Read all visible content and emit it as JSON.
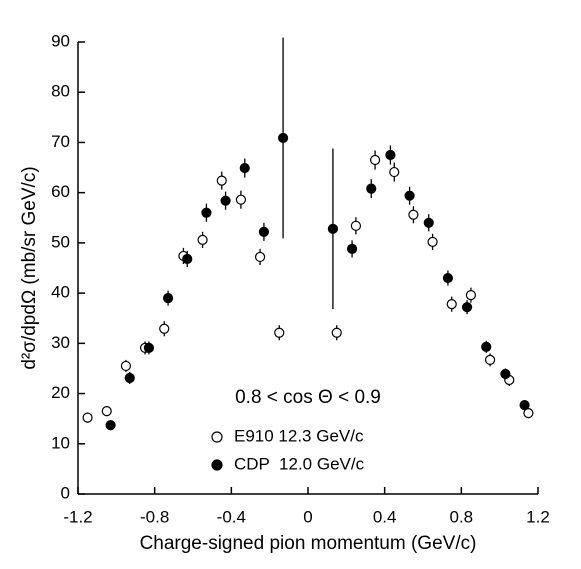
{
  "chart_data": {
    "type": "scatter",
    "annotation": "0.8 < cos Θ < 0.9",
    "xlabel": "Charge-signed pion momentum (GeV/c)",
    "ylabel": "d²σ/dpdΩ (mb/sr GeV/c)",
    "xlim": [
      -1.2,
      1.2
    ],
    "ylim": [
      0,
      90
    ],
    "xticks": [
      -1.2,
      -0.8,
      -0.4,
      0,
      0.4,
      0.8,
      1.2
    ],
    "yticks": [
      0,
      10,
      20,
      30,
      40,
      50,
      60,
      70,
      80,
      90
    ],
    "series": [
      {
        "name": "E910 12.3 GeV/c",
        "marker": "open",
        "color": "#000000",
        "x": [
          -1.15,
          -1.05,
          -0.95,
          -0.85,
          -0.75,
          -0.65,
          -0.55,
          -0.45,
          -0.35,
          -0.25,
          -0.15,
          0.15,
          0.25,
          0.35,
          0.45,
          0.55,
          0.65,
          0.75,
          0.85,
          0.95,
          1.05,
          1.15
        ],
        "values": [
          15.2,
          16.5,
          25.5,
          29.1,
          32.9,
          47.4,
          50.6,
          62.4,
          58.6,
          47.2,
          32.1,
          32.1,
          53.4,
          66.5,
          64.1,
          55.6,
          50.2,
          37.8,
          39.6,
          26.7,
          22.7,
          16.1
        ],
        "errors": [
          1,
          1,
          1.2,
          1.3,
          1.5,
          1.6,
          1.6,
          1.8,
          1.8,
          1.6,
          1.5,
          1.5,
          1.7,
          1.9,
          1.9,
          1.7,
          1.6,
          1.5,
          1.5,
          1.3,
          1.2,
          1
        ]
      },
      {
        "name": "CDP  12.0 GeV/c",
        "marker": "filled",
        "color": "#000000",
        "x": [
          -1.03,
          -0.93,
          -0.83,
          -0.73,
          -0.63,
          -0.53,
          -0.43,
          -0.33,
          -0.23,
          -0.13,
          0.13,
          0.23,
          0.33,
          0.43,
          0.53,
          0.63,
          0.73,
          0.83,
          0.93,
          1.03,
          1.13
        ],
        "values": [
          13.7,
          23.1,
          29.1,
          39.0,
          46.8,
          56.0,
          58.4,
          64.9,
          52.2,
          70.9,
          52.8,
          48.8,
          60.8,
          67.5,
          59.4,
          54.0,
          43.0,
          37.2,
          29.3,
          23.9,
          17.7
        ],
        "errors": [
          1,
          1.2,
          1.3,
          1.5,
          1.6,
          1.8,
          1.8,
          1.9,
          1.8,
          20,
          16,
          1.7,
          1.9,
          1.9,
          1.8,
          1.7,
          1.5,
          1.4,
          1.2,
          1.1,
          1
        ]
      }
    ]
  }
}
